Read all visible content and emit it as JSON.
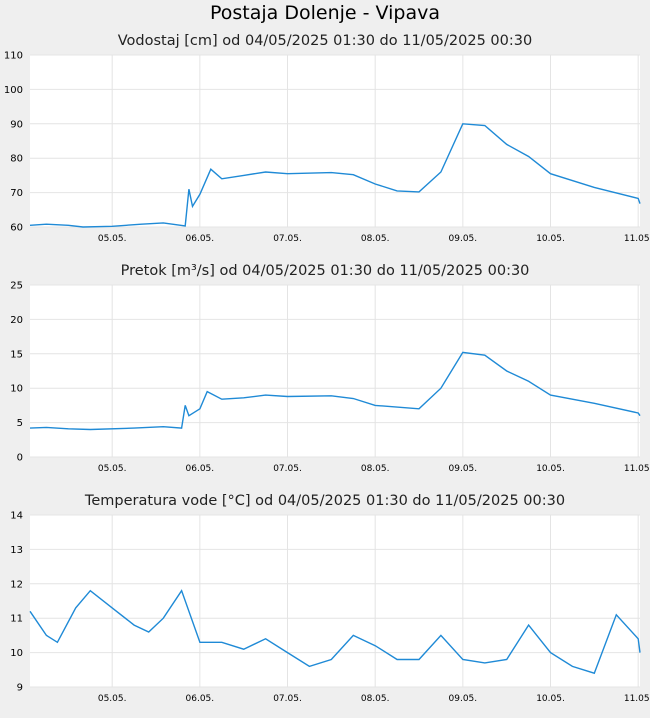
{
  "page": {
    "title": "Postaja Dolenje - Vipava"
  },
  "chart_data": [
    {
      "type": "line",
      "id": "vodostaj",
      "title": "Vodostaj [cm] od 04/05/2025 01:30 do 11/05/2025 00:30",
      "ylim": [
        60,
        110
      ],
      "yticks": [
        60,
        70,
        80,
        90,
        100,
        110
      ],
      "xlim": [
        "2025-05-04 01:30",
        "2025-05-11 00:30"
      ],
      "xticks": [
        "05.05.",
        "06.05.",
        "07.05.",
        "08.05.",
        "09.05.",
        "10.05.",
        "11.05."
      ],
      "grid": true,
      "color": "#1f8ad6",
      "series": [
        {
          "points": [
            [
              "2025-05-04 01:30",
              60.5
            ],
            [
              "2025-05-04 06:00",
              60.8
            ],
            [
              "2025-05-04 12:00",
              60.5
            ],
            [
              "2025-05-04 16:00",
              60.0
            ],
            [
              "2025-05-05 00:00",
              60.2
            ],
            [
              "2025-05-05 08:00",
              60.8
            ],
            [
              "2025-05-05 14:00",
              61.2
            ],
            [
              "2025-05-05 18:00",
              60.6
            ],
            [
              "2025-05-05 20:00",
              60.3
            ],
            [
              "2025-05-05 21:00",
              71.0
            ],
            [
              "2025-05-05 22:00",
              66.0
            ],
            [
              "2025-05-06 00:00",
              69.5
            ],
            [
              "2025-05-06 03:00",
              76.8
            ],
            [
              "2025-05-06 06:00",
              74.0
            ],
            [
              "2025-05-06 12:00",
              75.0
            ],
            [
              "2025-05-06 18:00",
              76.0
            ],
            [
              "2025-05-07 00:00",
              75.5
            ],
            [
              "2025-05-07 12:00",
              75.8
            ],
            [
              "2025-05-07 18:00",
              75.2
            ],
            [
              "2025-05-08 00:00",
              72.5
            ],
            [
              "2025-05-08 06:00",
              70.5
            ],
            [
              "2025-05-08 12:00",
              70.2
            ],
            [
              "2025-05-08 18:00",
              76.0
            ],
            [
              "2025-05-09 00:00",
              90.0
            ],
            [
              "2025-05-09 06:00",
              89.5
            ],
            [
              "2025-05-09 12:00",
              84.0
            ],
            [
              "2025-05-09 18:00",
              80.5
            ],
            [
              "2025-05-10 00:00",
              75.5
            ],
            [
              "2025-05-10 12:00",
              71.5
            ],
            [
              "2025-05-11 00:00",
              68.3
            ],
            [
              "2025-05-11 00:30",
              66.8
            ]
          ]
        }
      ]
    },
    {
      "type": "line",
      "id": "pretok",
      "title": "Pretok [m³/s] od 04/05/2025 01:30 do 11/05/2025 00:30",
      "ylim": [
        0,
        25
      ],
      "yticks": [
        0,
        5,
        10,
        15,
        20,
        25
      ],
      "xlim": [
        "2025-05-04 01:30",
        "2025-05-11 00:30"
      ],
      "xticks": [
        "05.05.",
        "06.05.",
        "07.05.",
        "08.05.",
        "09.05.",
        "10.05.",
        "11.05."
      ],
      "grid": true,
      "color": "#1f8ad6",
      "series": [
        {
          "points": [
            [
              "2025-05-04 01:30",
              4.2
            ],
            [
              "2025-05-04 06:00",
              4.3
            ],
            [
              "2025-05-04 12:00",
              4.1
            ],
            [
              "2025-05-04 18:00",
              4.0
            ],
            [
              "2025-05-05 06:00",
              4.2
            ],
            [
              "2025-05-05 14:00",
              4.4
            ],
            [
              "2025-05-05 19:00",
              4.2
            ],
            [
              "2025-05-05 20:00",
              7.5
            ],
            [
              "2025-05-05 21:00",
              6.0
            ],
            [
              "2025-05-06 00:00",
              7.0
            ],
            [
              "2025-05-06 02:00",
              9.5
            ],
            [
              "2025-05-06 06:00",
              8.4
            ],
            [
              "2025-05-06 12:00",
              8.6
            ],
            [
              "2025-05-06 18:00",
              9.0
            ],
            [
              "2025-05-07 00:00",
              8.8
            ],
            [
              "2025-05-07 12:00",
              8.9
            ],
            [
              "2025-05-07 18:00",
              8.5
            ],
            [
              "2025-05-08 00:00",
              7.5
            ],
            [
              "2025-05-08 12:00",
              7.0
            ],
            [
              "2025-05-08 18:00",
              10.0
            ],
            [
              "2025-05-09 00:00",
              15.2
            ],
            [
              "2025-05-09 06:00",
              14.8
            ],
            [
              "2025-05-09 12:00",
              12.5
            ],
            [
              "2025-05-09 18:00",
              11.0
            ],
            [
              "2025-05-10 00:00",
              9.0
            ],
            [
              "2025-05-10 12:00",
              7.8
            ],
            [
              "2025-05-11 00:00",
              6.4
            ],
            [
              "2025-05-11 00:30",
              6.0
            ]
          ]
        }
      ]
    },
    {
      "type": "line",
      "id": "temperatura",
      "title": "Temperatura vode [°C] od 04/05/2025 01:30 do 11/05/2025 00:30",
      "ylim": [
        9,
        14
      ],
      "yticks": [
        9,
        10,
        11,
        12,
        13,
        14
      ],
      "xlim": [
        "2025-05-04 01:30",
        "2025-05-11 00:30"
      ],
      "xticks": [
        "05.05.",
        "06.05.",
        "07.05.",
        "08.05.",
        "09.05.",
        "10.05.",
        "11.05."
      ],
      "grid": true,
      "color": "#1f8ad6",
      "series": [
        {
          "points": [
            [
              "2025-05-04 01:30",
              11.2
            ],
            [
              "2025-05-04 06:00",
              10.5
            ],
            [
              "2025-05-04 09:00",
              10.3
            ],
            [
              "2025-05-04 14:00",
              11.3
            ],
            [
              "2025-05-04 18:00",
              11.8
            ],
            [
              "2025-05-05 00:00",
              11.3
            ],
            [
              "2025-05-05 06:00",
              10.8
            ],
            [
              "2025-05-05 10:00",
              10.6
            ],
            [
              "2025-05-05 14:00",
              11.0
            ],
            [
              "2025-05-05 19:00",
              11.8
            ],
            [
              "2025-05-06 00:00",
              10.3
            ],
            [
              "2025-05-06 06:00",
              10.3
            ],
            [
              "2025-05-06 12:00",
              10.1
            ],
            [
              "2025-05-06 18:00",
              10.4
            ],
            [
              "2025-05-07 00:00",
              10.0
            ],
            [
              "2025-05-07 06:00",
              9.6
            ],
            [
              "2025-05-07 12:00",
              9.8
            ],
            [
              "2025-05-07 18:00",
              10.5
            ],
            [
              "2025-05-08 00:00",
              10.2
            ],
            [
              "2025-05-08 06:00",
              9.8
            ],
            [
              "2025-05-08 12:00",
              9.8
            ],
            [
              "2025-05-08 18:00",
              10.5
            ],
            [
              "2025-05-09 00:00",
              9.8
            ],
            [
              "2025-05-09 06:00",
              9.7
            ],
            [
              "2025-05-09 12:00",
              9.8
            ],
            [
              "2025-05-09 18:00",
              10.8
            ],
            [
              "2025-05-10 00:00",
              10.0
            ],
            [
              "2025-05-10 06:00",
              9.6
            ],
            [
              "2025-05-10 12:00",
              9.4
            ],
            [
              "2025-05-10 18:00",
              11.1
            ],
            [
              "2025-05-11 00:00",
              10.4
            ],
            [
              "2025-05-11 00:30",
              10.0
            ]
          ]
        }
      ]
    }
  ]
}
